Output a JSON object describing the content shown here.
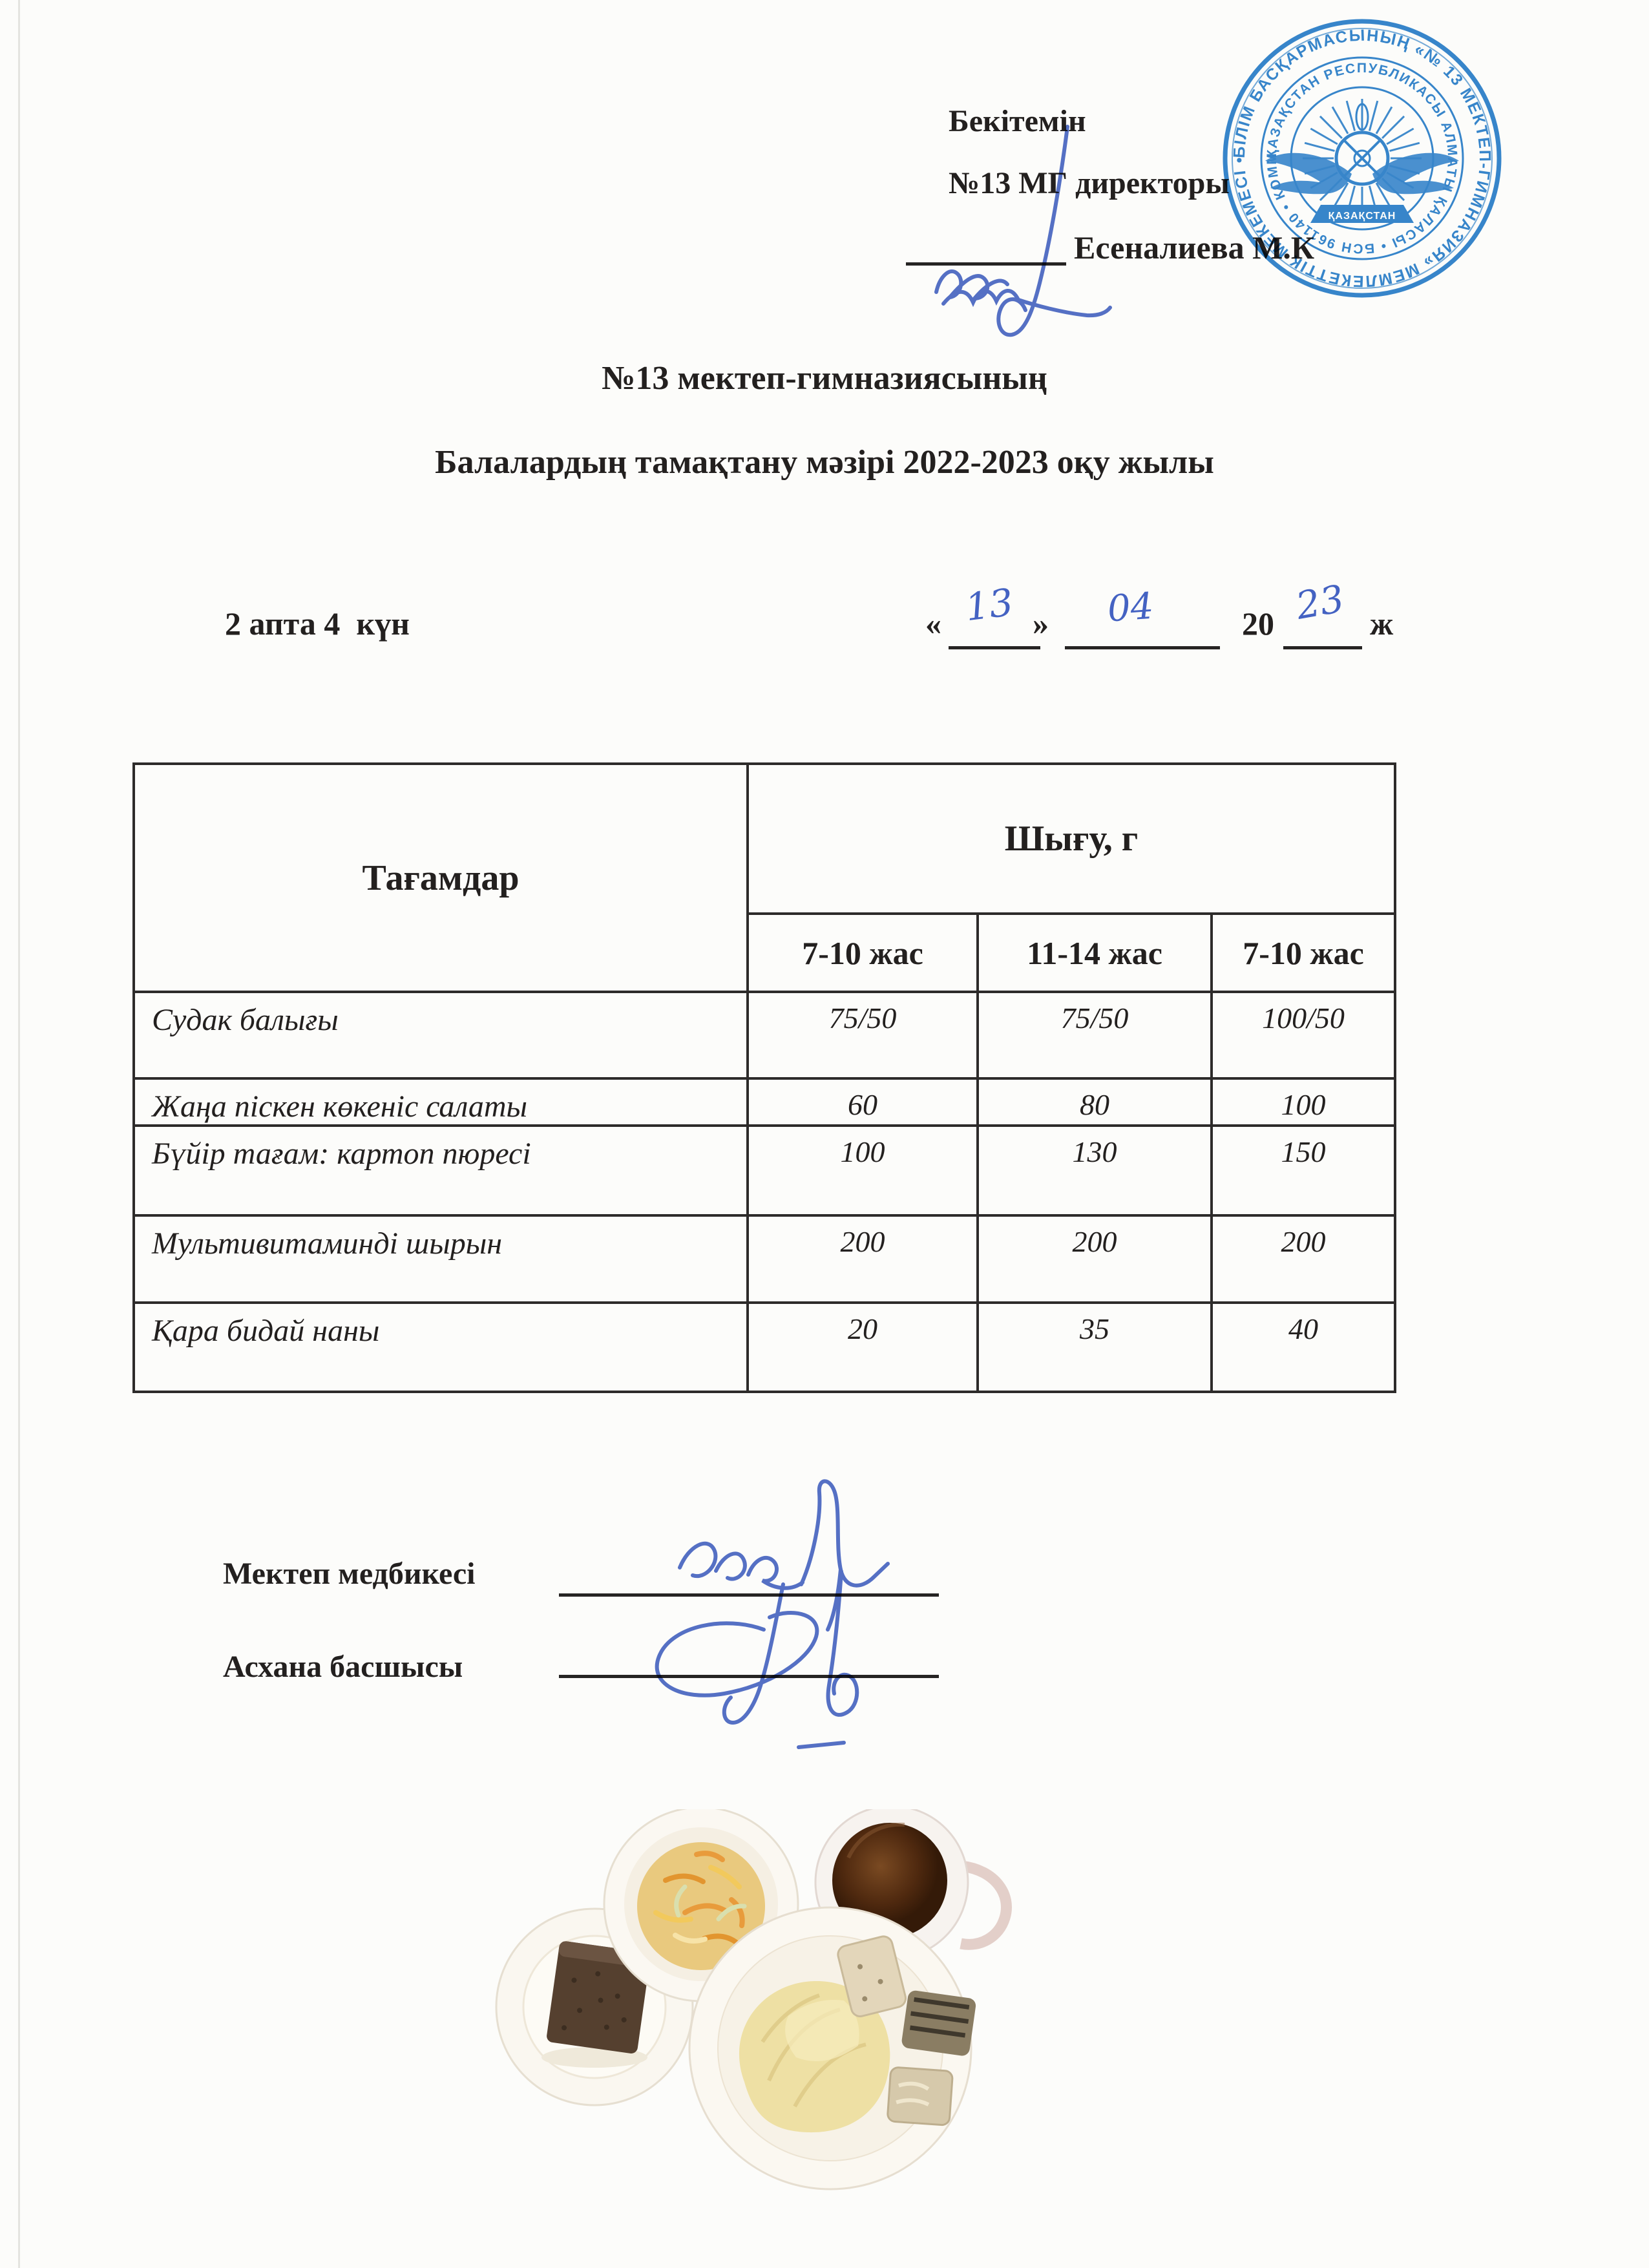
{
  "approval": {
    "approve_label": "Бекітемін",
    "director_label": "№13 МГ директоры",
    "director_name": "Есеналиева М.К"
  },
  "stamp": {
    "outer_ring_text": "БІЛІМ БАСҚАРМАСЫНЫҢ «№ 13 МЕКТЕП-ГИМНАЗИЯ» МЕМЛЕКЕТТІК МЕКЕМЕСІ • АЛМАТЫ ҚАЛАСЫ ",
    "inner_ring_text": "ҚАЗАҚСТАН РЕСПУБЛИКАСЫ АЛМАТЫ ҚАЛАСЫ • БСН 961140 • КОММУНАЛДЫҚ ",
    "center_banner": "ҚАЗАҚСТАН"
  },
  "title": {
    "line1": "№13 мектеп-гимназиясының",
    "line2": "Балалардың тамақтану мәзірі 2022-2023 оқу жылы"
  },
  "schedule": {
    "week_day": "2 апта 4  күн",
    "quote_open": "«",
    "day": "13",
    "quote_close": "»",
    "month": "04",
    "year_prefix": "20",
    "year": "23",
    "year_suffix": "ж"
  },
  "table": {
    "dishes_header": "Тағамдар",
    "output_header": "Шығу, г",
    "age_headers": [
      "7-10 жас",
      "11-14 жас",
      "7-10 жас"
    ],
    "rows": [
      {
        "dish": "Судак балығы",
        "values": [
          "75/50",
          "75/50",
          "100/50"
        ]
      },
      {
        "dish": "Жаңа піскен көкеніс салаты",
        "values": [
          "60",
          "80",
          "100"
        ]
      },
      {
        "dish": "Бүйір тағам: картоп пюресі",
        "values": [
          "100",
          "130",
          "150"
        ]
      },
      {
        "dish": "Мультивитаминді шырын",
        "values": [
          "200",
          "200",
          "200"
        ]
      },
      {
        "dish": "Қара бидай наны",
        "values": [
          "20",
          "35",
          "40"
        ]
      }
    ]
  },
  "signatures": {
    "nurse_label": "Мектеп медбикесі",
    "canteen_label": "Асхана басшысы"
  },
  "colors": {
    "ink": "#23201f",
    "stamp_blue": "#2f82cc",
    "pen_blue": "#4462c2",
    "table_border": "#2d2b2a"
  }
}
